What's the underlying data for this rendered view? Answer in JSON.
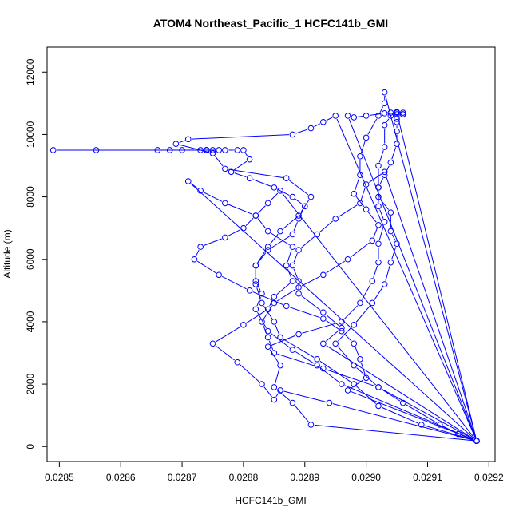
{
  "chart_data": {
    "type": "line",
    "title": "ATOM4 Northeast_Pacific_1 HCFC141b_GMI",
    "xlabel": "HCFC141b_GMI",
    "ylabel": "Altitude (m)",
    "xlim": [
      0.02848,
      0.02921
    ],
    "ylim": [
      -480,
      12800
    ],
    "xticks": [
      0.0285,
      0.0286,
      0.0287,
      0.0288,
      0.0289,
      0.029,
      0.0291,
      0.0292
    ],
    "xtick_labels": [
      "0.0285",
      "0.0286",
      "0.0287",
      "0.0288",
      "0.0289",
      "0.0290",
      "0.0291",
      "0.0292"
    ],
    "yticks": [
      0,
      2000,
      4000,
      6000,
      8000,
      10000,
      12000
    ],
    "ytick_labels": [
      "0",
      "2000",
      "4000",
      "6000",
      "8000",
      "10000",
      "12000"
    ],
    "grid": false,
    "colors": {
      "series": "#0000ff",
      "axis": "#000000"
    },
    "series": [
      {
        "marker": "open-circle",
        "x": [
          0.02918,
          0.02915,
          0.02912,
          0.02906,
          0.02902,
          0.02898,
          0.02895,
          0.02898,
          0.02901,
          0.02903,
          0.02904,
          0.02905,
          0.02904,
          0.02904,
          0.02902,
          0.02902,
          0.02903,
          0.02904,
          0.02905,
          0.02905,
          0.02905,
          0.02905,
          0.02906,
          0.02906,
          0.02905,
          0.02904,
          0.02903,
          0.029,
          0.02898,
          0.02897,
          0.02918,
          0.02891,
          0.02888,
          0.02885,
          0.02886,
          0.02884,
          0.02889,
          0.02896,
          0.02899,
          0.02901,
          0.02902,
          0.02902,
          0.02903,
          0.02902,
          0.02902,
          0.02902,
          0.02903,
          0.02903,
          0.02904,
          0.02905,
          0.02905,
          0.02906,
          0.02905,
          0.02918,
          0.02902,
          0.02893,
          0.02885,
          0.02884,
          0.02883,
          0.02885,
          0.02889,
          0.02893,
          0.02897,
          0.02901,
          0.02902,
          0.029,
          0.02898,
          0.02899,
          0.02899,
          0.029,
          0.02902,
          0.02903,
          0.02903,
          0.02918,
          0.02896,
          0.02892,
          0.02888,
          0.02884,
          0.02882,
          0.02883,
          0.02882,
          0.02882,
          0.02884,
          0.02886,
          0.02889,
          0.02891,
          0.02887,
          0.02877,
          0.02875,
          0.02869,
          0.02871,
          0.02888,
          0.02891,
          0.02893,
          0.02895,
          0.02918,
          0.02894,
          0.02886,
          0.02885,
          0.02883,
          0.02879,
          0.02875,
          0.0288,
          0.02884,
          0.02885,
          0.02888,
          0.02887,
          0.02888,
          0.02884,
          0.02882,
          0.02877,
          0.02873,
          0.02871,
          0.02918,
          0.02893,
          0.02896,
          0.02893,
          0.02889,
          0.02889,
          0.02888,
          0.02889,
          0.02892,
          0.02895,
          0.02899,
          0.029,
          0.02903,
          0.02918,
          0.02897,
          0.029,
          0.02899,
          0.02898,
          0.02896,
          0.02893,
          0.02887,
          0.02881,
          0.02876,
          0.02872,
          0.02873,
          0.02877,
          0.0288,
          0.02882,
          0.02884,
          0.02886,
          0.02918,
          0.02909,
          0.02902,
          0.02898,
          0.02892,
          0.02886,
          0.02885,
          0.02883,
          0.02882,
          0.02882,
          0.02884,
          0.02888,
          0.02889,
          0.0289,
          0.02888,
          0.02885,
          0.02881,
          0.02878,
          0.02881,
          0.0288,
          0.02879,
          0.02877,
          0.02876,
          0.02874,
          0.02874,
          0.02873,
          0.0287,
          0.02868,
          0.02866,
          0.02856,
          0.02849,
          0.02875,
          0.02874
        ],
        "y": [
          180,
          400,
          700,
          1400,
          1900,
          2600,
          3300,
          3900,
          4600,
          5200,
          5900,
          6500,
          6900,
          7500,
          8000,
          8300,
          8700,
          9100,
          9700,
          10100,
          10400,
          10500,
          10650,
          10700,
          10720,
          10700,
          10680,
          10600,
          10550,
          10600,
          180,
          700,
          1400,
          1900,
          2600,
          3200,
          3600,
          4000,
          4600,
          5300,
          5900,
          6500,
          7200,
          7700,
          8300,
          9000,
          9600,
          10300,
          10600,
          10650,
          10700,
          10650,
          10700,
          180,
          1900,
          2500,
          3000,
          3500,
          4000,
          4600,
          5100,
          5500,
          6000,
          6600,
          7100,
          7600,
          8100,
          8700,
          9300,
          9900,
          10600,
          11000,
          11350,
          180,
          2000,
          2600,
          3100,
          3700,
          4400,
          4900,
          5300,
          5800,
          6400,
          6900,
          7400,
          8000,
          8600,
          8900,
          9400,
          9700,
          9850,
          10000,
          10200,
          10400,
          10600,
          180,
          1400,
          1800,
          1500,
          2000,
          2700,
          3300,
          3900,
          4400,
          4800,
          5300,
          5800,
          6400,
          6900,
          7400,
          7800,
          8200,
          8500,
          180,
          3300,
          3800,
          4300,
          4900,
          5300,
          5800,
          6300,
          6800,
          7300,
          7800,
          8400,
          8800,
          180,
          1800,
          2200,
          2800,
          3300,
          3700,
          4100,
          4500,
          5000,
          5500,
          6000,
          6400,
          6700,
          7000,
          7400,
          7800,
          8200,
          180,
          700,
          1300,
          2000,
          2800,
          3500,
          4000,
          4600,
          5200,
          5800,
          6300,
          6800,
          7300,
          7700,
          8000,
          8300,
          8600,
          8800,
          9200,
          9500,
          9500,
          9500,
          9500,
          9500,
          9500,
          9500,
          9500,
          9500,
          9500,
          9500,
          9500,
          9500,
          9500
        ]
      }
    ]
  }
}
